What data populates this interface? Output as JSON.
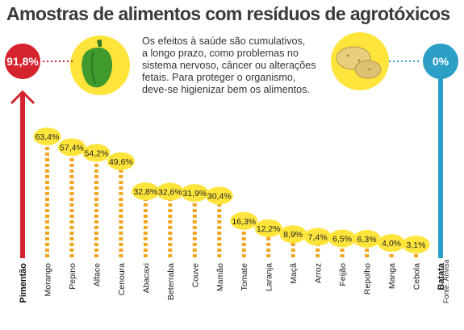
{
  "title": "Amostras de alimentos com resíduos de agrotóxicos",
  "description": [
    "Os efeitos à saúde são cumulativos,",
    "a longo prazo, como problemas no",
    "sistema nervoso, câncer ou alterações",
    "fetais. Para proteger o organismo,",
    "deve-se higienizar bem os alimentos."
  ],
  "source": "Fonte: Anvisa",
  "colors": {
    "max": "#d5232e",
    "min": "#2c9fc7",
    "ray": "#f3a51e",
    "blob": "#ffe53b"
  },
  "icons": {
    "left_badge": "green-pepper-icon",
    "right_badge": "potato-icon"
  },
  "chart_data": {
    "type": "bar",
    "title": "Amostras de alimentos com resíduos de agrotóxicos",
    "categories": [
      "Pimentão",
      "Morango",
      "Pepino",
      "Alface",
      "Cenoura",
      "Abacaxi",
      "Beterraba",
      "Couve",
      "Mamão",
      "Tomate",
      "Laranja",
      "Maçã",
      "Arroz",
      "Feijão",
      "Repolho",
      "Manga",
      "Cebola",
      "Batata"
    ],
    "values": [
      91.8,
      63.4,
      57.4,
      54.2,
      49.6,
      32.8,
      32.6,
      31.9,
      30.4,
      16.3,
      12.2,
      8.9,
      7.4,
      6.5,
      6.3,
      4.0,
      3.1,
      0
    ],
    "value_labels": [
      "91,8%",
      "63,4%",
      "57,4%",
      "54,2%",
      "49,6%",
      "32,8%",
      "32,6%",
      "31,9%",
      "30,4%",
      "16,3%",
      "12,2%",
      "8,9%",
      "7,4%",
      "6,5%",
      "6,3%",
      "4,0%",
      "3,1%",
      "0%"
    ],
    "ylim": [
      0,
      100
    ]
  }
}
